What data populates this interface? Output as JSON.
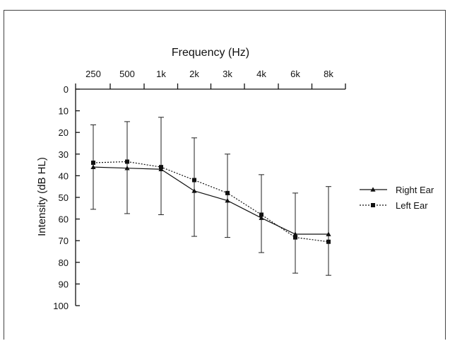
{
  "chart_data": {
    "type": "line",
    "title": "Frequency (Hz)",
    "ylabel": "Intensity (dB HL)",
    "categories": [
      "250",
      "500",
      "1k",
      "2k",
      "3k",
      "4k",
      "6k",
      "8k"
    ],
    "yticks": [
      "0",
      "10",
      "20",
      "30",
      "40",
      "50",
      "60",
      "70",
      "80",
      "90",
      "100"
    ],
    "ylim": [
      0,
      100
    ],
    "y_inverted": true,
    "x_axis_position": "top",
    "grid": false,
    "legend_position": "right",
    "series": [
      {
        "name": "Right Ear",
        "marker": "triangle",
        "line_style": "solid",
        "values": [
          36,
          36.5,
          37,
          47,
          51.5,
          59.5,
          67,
          67
        ],
        "error_low": [
          55.5,
          57.5,
          58,
          68,
          68.5,
          75.5,
          85,
          86
        ],
        "error_high": [
          16.5,
          15,
          13,
          22.5,
          30,
          39.5,
          48,
          45
        ]
      },
      {
        "name": "Left Ear",
        "marker": "square",
        "line_style": "dotted",
        "values": [
          34,
          33.5,
          36,
          42,
          48,
          58,
          68.5,
          70.5
        ]
      }
    ]
  }
}
